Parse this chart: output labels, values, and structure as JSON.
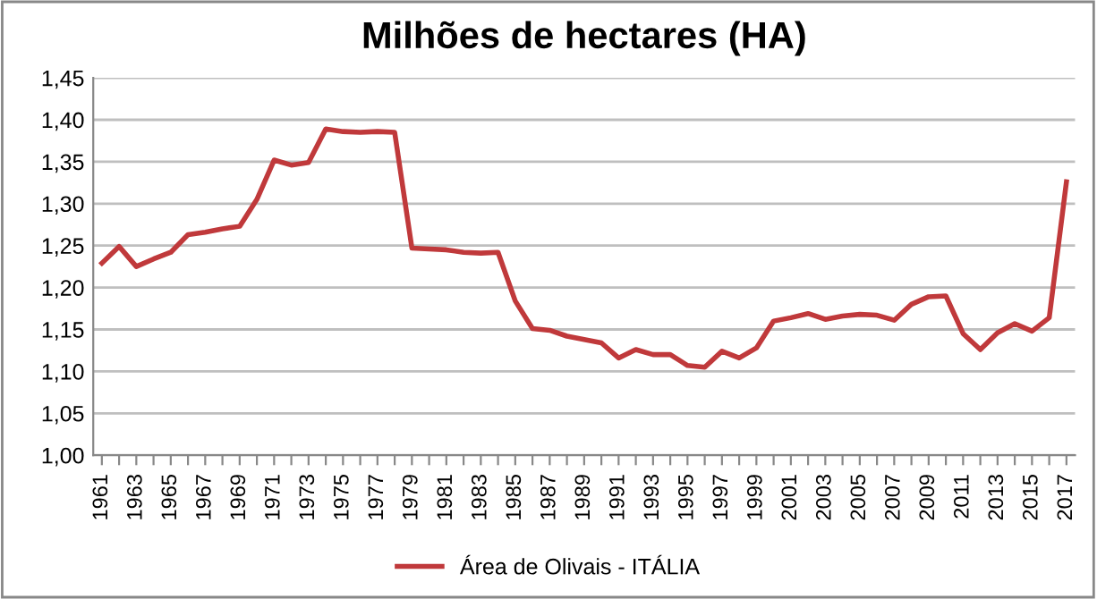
{
  "chart_data": {
    "type": "line",
    "title": "Milhões de hectares (HA)",
    "categories": [
      "1961",
      null,
      "1963",
      null,
      "1965",
      null,
      "1967",
      null,
      "1969",
      null,
      "1971",
      null,
      "1973",
      null,
      "1975",
      null,
      "1977",
      null,
      "1979",
      null,
      "1981",
      null,
      "1983",
      null,
      "1985",
      null,
      "1987",
      null,
      "1989",
      null,
      "1991",
      null,
      "1993",
      null,
      "1995",
      null,
      "1997",
      null,
      "1999",
      null,
      "2001",
      null,
      "2003",
      null,
      "2005",
      null,
      "2007",
      null,
      "2009",
      null,
      "2011",
      null,
      "2013",
      null,
      "2015",
      null,
      "2017"
    ],
    "series": [
      {
        "name": "Área de Olivais - ITÁLIA",
        "color": "#c0393b",
        "values": [
          1.229,
          1.249,
          1.225,
          1.234,
          1.242,
          1.263,
          1.266,
          1.27,
          1.273,
          1.305,
          1.352,
          1.346,
          1.349,
          1.389,
          1.386,
          1.385,
          1.386,
          1.385,
          1.247,
          1.246,
          1.245,
          1.242,
          1.241,
          1.242,
          1.184,
          1.151,
          1.149,
          1.142,
          1.138,
          1.134,
          1.116,
          1.126,
          1.12,
          1.12,
          1.107,
          1.105,
          1.124,
          1.116,
          1.128,
          1.16,
          1.164,
          1.169,
          1.162,
          1.166,
          1.168,
          1.167,
          1.161,
          1.18,
          1.189,
          1.19,
          1.145,
          1.126,
          1.146,
          1.157,
          1.148,
          1.164,
          1.326
        ]
      }
    ],
    "ylim": [
      1.0,
      1.45
    ],
    "yticks": [
      {
        "value": 1.0,
        "label": "1,00"
      },
      {
        "value": 1.05,
        "label": "1,05"
      },
      {
        "value": 1.1,
        "label": "1,10"
      },
      {
        "value": 1.15,
        "label": "1,15"
      },
      {
        "value": 1.2,
        "label": "1,20"
      },
      {
        "value": 1.25,
        "label": "1,25"
      },
      {
        "value": 1.3,
        "label": "1,30"
      },
      {
        "value": 1.35,
        "label": "1,35"
      },
      {
        "value": 1.4,
        "label": "1,40"
      },
      {
        "value": 1.45,
        "label": "1,45"
      }
    ],
    "grid": "y",
    "legend": "bottom",
    "marker": "none",
    "line_style": "solid"
  }
}
